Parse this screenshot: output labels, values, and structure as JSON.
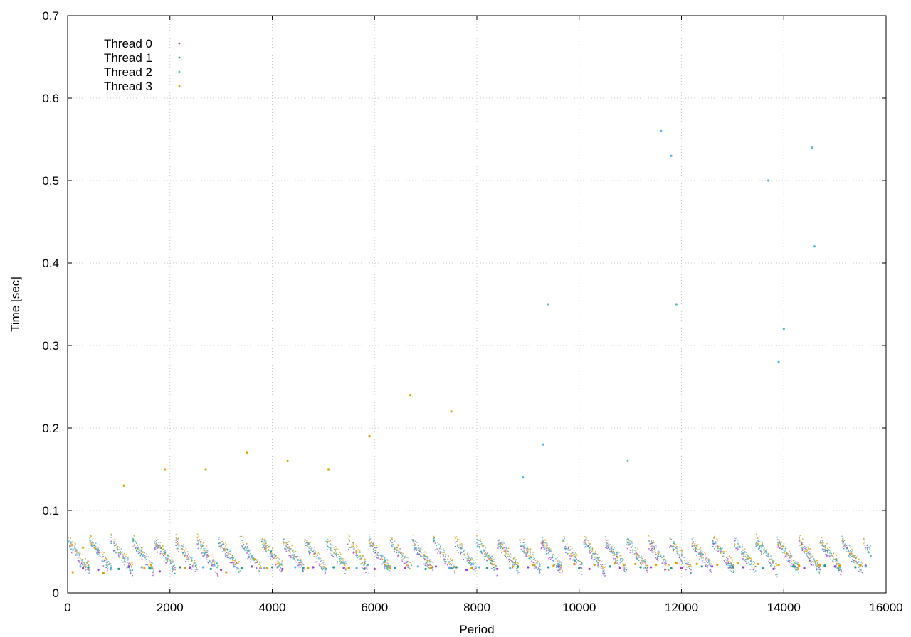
{
  "chart_data": {
    "type": "scatter",
    "title": "",
    "xlabel": "Period",
    "ylabel": "Time [sec]",
    "xlim": [
      0,
      16000
    ],
    "ylim": [
      0,
      0.7
    ],
    "xticks": [
      0,
      2000,
      4000,
      6000,
      8000,
      10000,
      12000,
      14000,
      16000
    ],
    "yticks": [
      0,
      0.1,
      0.2,
      0.3,
      0.4,
      0.5,
      0.6,
      0.7
    ],
    "grid": true,
    "legend_position": "top-left",
    "series": [
      {
        "name": "Thread 0",
        "color": "#9b3fd6",
        "points": [
          [
            300,
            0.03
          ],
          [
            600,
            0.028
          ],
          [
            1200,
            0.032
          ],
          [
            1800,
            0.026
          ],
          [
            2400,
            0.03
          ],
          [
            3000,
            0.028
          ],
          [
            3600,
            0.032
          ],
          [
            4200,
            0.029
          ],
          [
            4800,
            0.031
          ],
          [
            5400,
            0.03
          ],
          [
            6000,
            0.029
          ],
          [
            6600,
            0.03
          ],
          [
            7200,
            0.032
          ],
          [
            7800,
            0.028
          ],
          [
            8400,
            0.029
          ],
          [
            9000,
            0.031
          ],
          [
            9600,
            0.032
          ],
          [
            10200,
            0.029
          ],
          [
            10800,
            0.03
          ],
          [
            11400,
            0.031
          ],
          [
            12000,
            0.03
          ],
          [
            12600,
            0.032
          ],
          [
            13200,
            0.031
          ],
          [
            13800,
            0.029
          ],
          [
            14400,
            0.03
          ],
          [
            15000,
            0.032
          ],
          [
            15600,
            0.033
          ]
        ]
      },
      {
        "name": "Thread 1",
        "color": "#1a9e85",
        "points": [
          [
            400,
            0.031
          ],
          [
            1000,
            0.029
          ],
          [
            1600,
            0.03
          ],
          [
            2200,
            0.031
          ],
          [
            2800,
            0.029
          ],
          [
            3400,
            0.03
          ],
          [
            4000,
            0.031
          ],
          [
            4600,
            0.03
          ],
          [
            5200,
            0.031
          ],
          [
            5800,
            0.029
          ],
          [
            6400,
            0.03
          ],
          [
            7000,
            0.029
          ],
          [
            7600,
            0.031
          ],
          [
            8200,
            0.03
          ],
          [
            8800,
            0.032
          ],
          [
            9400,
            0.031
          ],
          [
            10000,
            0.03
          ],
          [
            10600,
            0.032
          ],
          [
            11200,
            0.031
          ],
          [
            11800,
            0.03
          ],
          [
            12400,
            0.032
          ],
          [
            13000,
            0.031
          ],
          [
            13600,
            0.03
          ],
          [
            14200,
            0.032
          ],
          [
            14800,
            0.033
          ],
          [
            15400,
            0.031
          ]
        ]
      },
      {
        "name": "Thread 2",
        "color": "#56b4e9",
        "points": [
          [
            250,
            0.032
          ],
          [
            850,
            0.03
          ],
          [
            1450,
            0.031
          ],
          [
            2050,
            0.029
          ],
          [
            2650,
            0.031
          ],
          [
            3250,
            0.032
          ],
          [
            3850,
            0.03
          ],
          [
            4450,
            0.031
          ],
          [
            5050,
            0.029
          ],
          [
            5650,
            0.03
          ],
          [
            6250,
            0.031
          ],
          [
            6850,
            0.032
          ],
          [
            7450,
            0.03
          ],
          [
            8050,
            0.031
          ],
          [
            8650,
            0.03
          ],
          [
            8900,
            0.14
          ],
          [
            9300,
            0.18
          ],
          [
            9400,
            0.35
          ],
          [
            10950,
            0.16
          ],
          [
            11600,
            0.56
          ],
          [
            11800,
            0.53
          ],
          [
            11900,
            0.35
          ],
          [
            13700,
            0.5
          ],
          [
            13900,
            0.28
          ],
          [
            14000,
            0.32
          ],
          [
            14550,
            0.54
          ],
          [
            14600,
            0.42
          ],
          [
            15100,
            0.031
          ],
          [
            15600,
            0.032
          ]
        ]
      },
      {
        "name": "Thread 3",
        "color": "#e69f00",
        "points": [
          [
            100,
            0.025
          ],
          [
            300,
            0.055
          ],
          [
            700,
            0.024
          ],
          [
            1100,
            0.13
          ],
          [
            1500,
            0.03
          ],
          [
            1900,
            0.15
          ],
          [
            2300,
            0.03
          ],
          [
            2700,
            0.15
          ],
          [
            3100,
            0.025
          ],
          [
            3500,
            0.17
          ],
          [
            3900,
            0.03
          ],
          [
            4300,
            0.16
          ],
          [
            4700,
            0.03
          ],
          [
            5100,
            0.15
          ],
          [
            5500,
            0.03
          ],
          [
            5900,
            0.19
          ],
          [
            6300,
            0.03
          ],
          [
            6700,
            0.24
          ],
          [
            7100,
            0.03
          ],
          [
            7500,
            0.22
          ],
          [
            7900,
            0.03
          ],
          [
            8300,
            0.035
          ],
          [
            8700,
            0.032
          ],
          [
            9100,
            0.034
          ],
          [
            9500,
            0.033
          ],
          [
            9900,
            0.035
          ],
          [
            10300,
            0.034
          ],
          [
            10700,
            0.036
          ],
          [
            11100,
            0.035
          ],
          [
            11500,
            0.034
          ],
          [
            11900,
            0.036
          ],
          [
            12300,
            0.035
          ],
          [
            12700,
            0.034
          ],
          [
            13100,
            0.036
          ],
          [
            13500,
            0.035
          ],
          [
            13900,
            0.034
          ],
          [
            14300,
            0.033
          ],
          [
            14700,
            0.034
          ],
          [
            15100,
            0.033
          ],
          [
            15500,
            0.034
          ]
        ]
      }
    ]
  }
}
